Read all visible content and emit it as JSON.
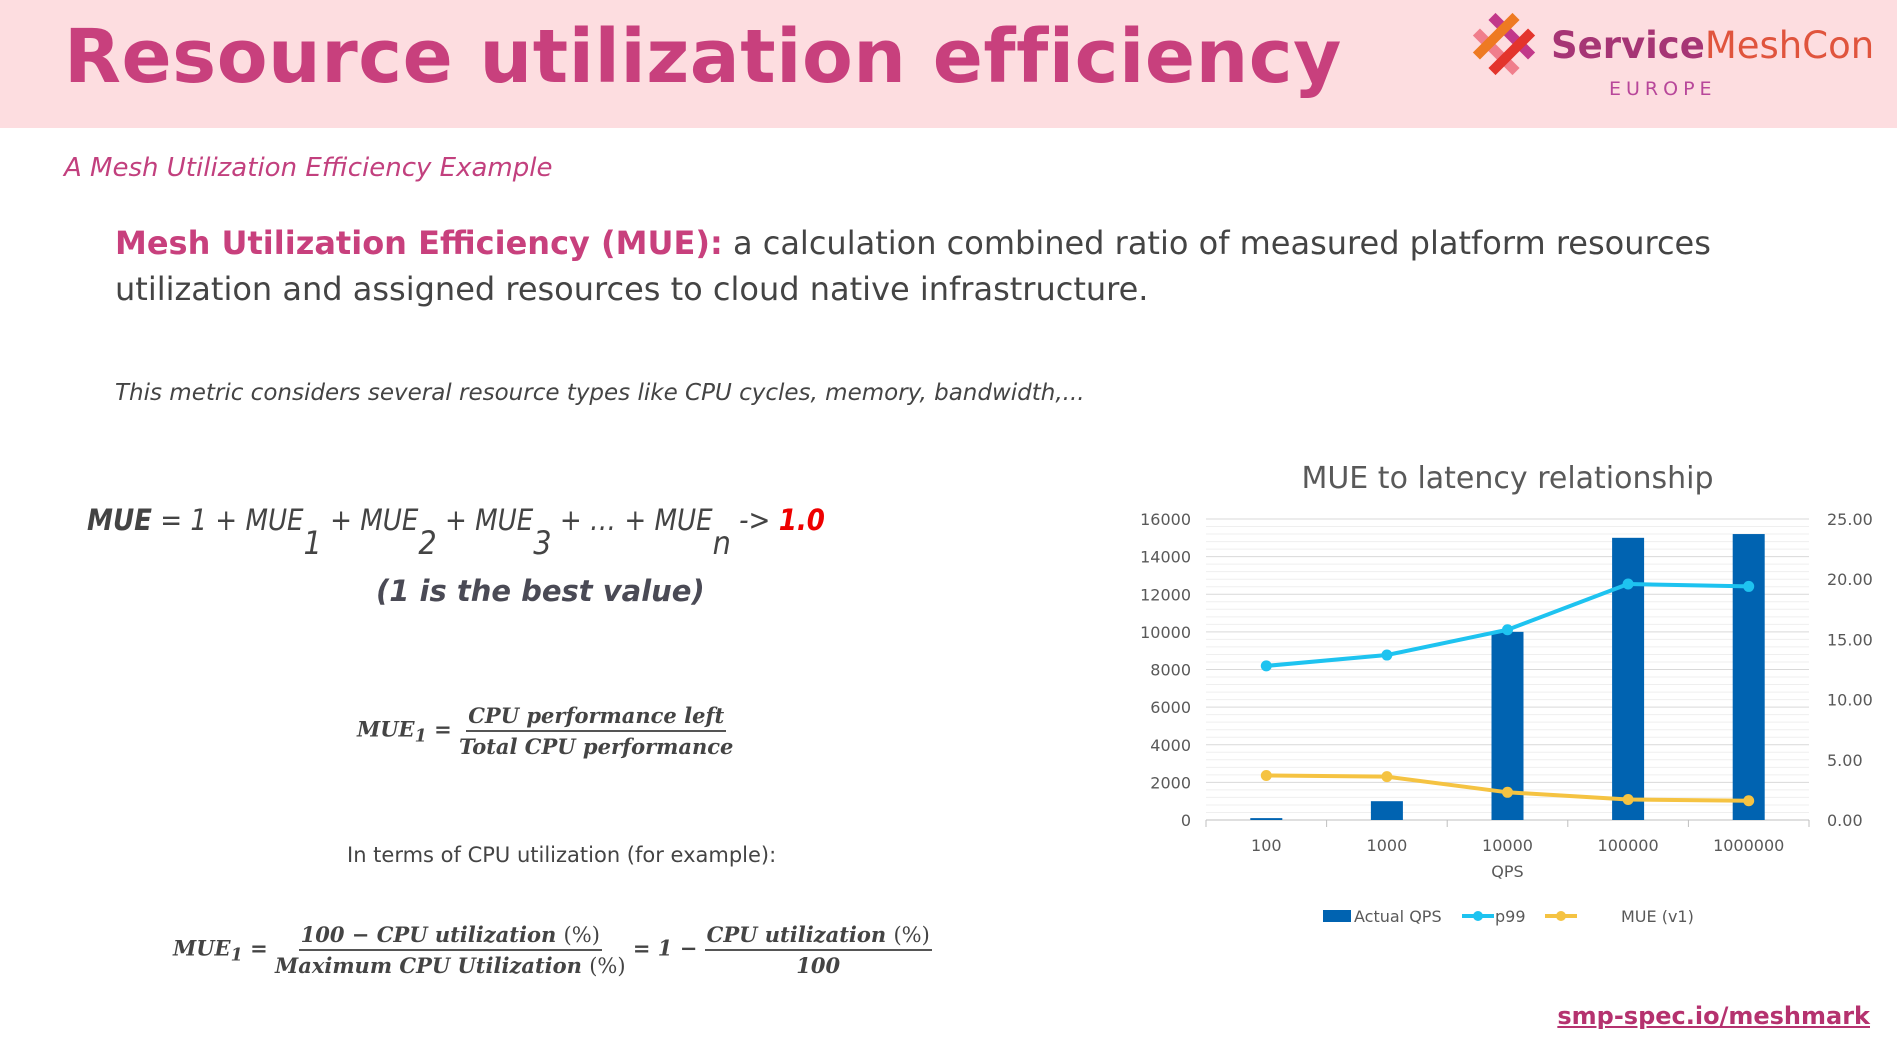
{
  "header": {
    "title": "Resource utilization efficiency",
    "logo_main_a": "Service",
    "logo_main_b": "MeshCon",
    "logo_sub": "EUROPE"
  },
  "subtitle": "A Mesh Utilization Efficiency Example",
  "definition": {
    "term": "Mesh Utilization Efficiency (MUE):",
    "text": " a calculation combined ratio of measured platform resources utilization and assigned resources to cloud native infrastructure."
  },
  "note": "This metric considers several resource types like CPU cycles, memory, bandwidth,...",
  "formula_main": {
    "lhs": "MUE",
    "p0": " = 1 + MUE",
    "s1": "1",
    "p1": " + MUE",
    "s2": "2",
    "p2": " + MUE",
    "s3": "3",
    "p3": " + … + MUE",
    "sn": "n",
    "arrow": " -> ",
    "result": "1.0"
  },
  "best_value_note": "(1 is the best value)",
  "formula_1": {
    "lhs": "MUE",
    "lhs_sub": "1",
    "eq": " = ",
    "numerator": "CPU performance left",
    "denominator": "Total CPU performance"
  },
  "in_terms": "In terms of CPU utilization (for example):",
  "formula_2": {
    "lhs": "MUE",
    "lhs_sub": "1",
    "eq": " = ",
    "num1": "100 − CPU utilization ",
    "num1_pct": "(%)",
    "den1": "Maximum CPU Utilization ",
    "den1_pct": "(%)",
    "mid": " = 1 − ",
    "num2": "CPU utilization ",
    "num2_pct": "(%)",
    "den2": "100"
  },
  "link": "smp-spec.io/meshmark",
  "chart_data": {
    "type": "bar+line",
    "title": "MUE to latency relationship",
    "xlabel": "QPS",
    "categories": [
      "100",
      "1000",
      "10000",
      "100000",
      "1000000"
    ],
    "y_left": {
      "ylim": [
        0,
        16000
      ],
      "ticks": [
        "0",
        "2000",
        "4000",
        "6000",
        "8000",
        "10000",
        "12000",
        "14000",
        "16000"
      ]
    },
    "y_right": {
      "ylim": [
        0,
        25
      ],
      "ticks": [
        "0.00",
        "5.00",
        "10.00",
        "15.00",
        "20.00",
        "25.00"
      ]
    },
    "grid": true,
    "legend": "bottom",
    "series": [
      {
        "name": "Actual QPS",
        "kind": "bar",
        "axis": "left",
        "color": "#0063b1",
        "values": [
          100,
          1000,
          10000,
          15000,
          15200
        ]
      },
      {
        "name": "p99",
        "kind": "line",
        "axis": "right",
        "color": "#1ec3f0",
        "values": [
          12.8,
          13.7,
          15.8,
          19.6,
          19.4
        ]
      },
      {
        "name": "MUE (v1)",
        "kind": "line",
        "axis": "right",
        "color": "#f5c342",
        "values": [
          3.7,
          3.6,
          2.3,
          1.7,
          1.6
        ]
      }
    ]
  }
}
